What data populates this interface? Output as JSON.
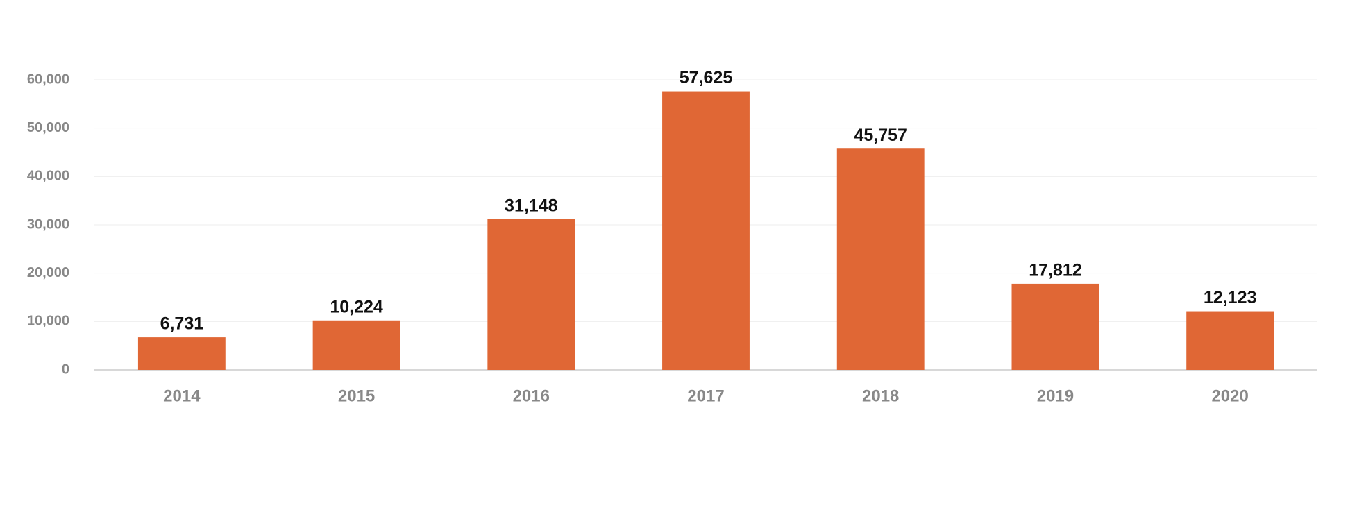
{
  "chart_data": {
    "type": "bar",
    "categories": [
      "2014",
      "2015",
      "2016",
      "2017",
      "2018",
      "2019",
      "2020"
    ],
    "values": [
      6731,
      10224,
      31148,
      57625,
      45757,
      17812,
      12123
    ],
    "value_labels": [
      "6,731",
      "10,224",
      "31,148",
      "57,625",
      "45,757",
      "17,812",
      "12,123"
    ],
    "color": "#e06735",
    "ylim": [
      0,
      60000
    ],
    "yticks": [
      0,
      {
        "value": 10000,
        "label": "10,000"
      },
      {
        "value": 20000,
        "label": "20,000"
      },
      {
        "value": 30000,
        "label": "30,000"
      },
      {
        "value": 40000,
        "label": "40,000"
      },
      {
        "value": 50000,
        "label": "50,000"
      },
      {
        "value": 60000,
        "label": "60,000"
      }
    ],
    "grid": true
  }
}
